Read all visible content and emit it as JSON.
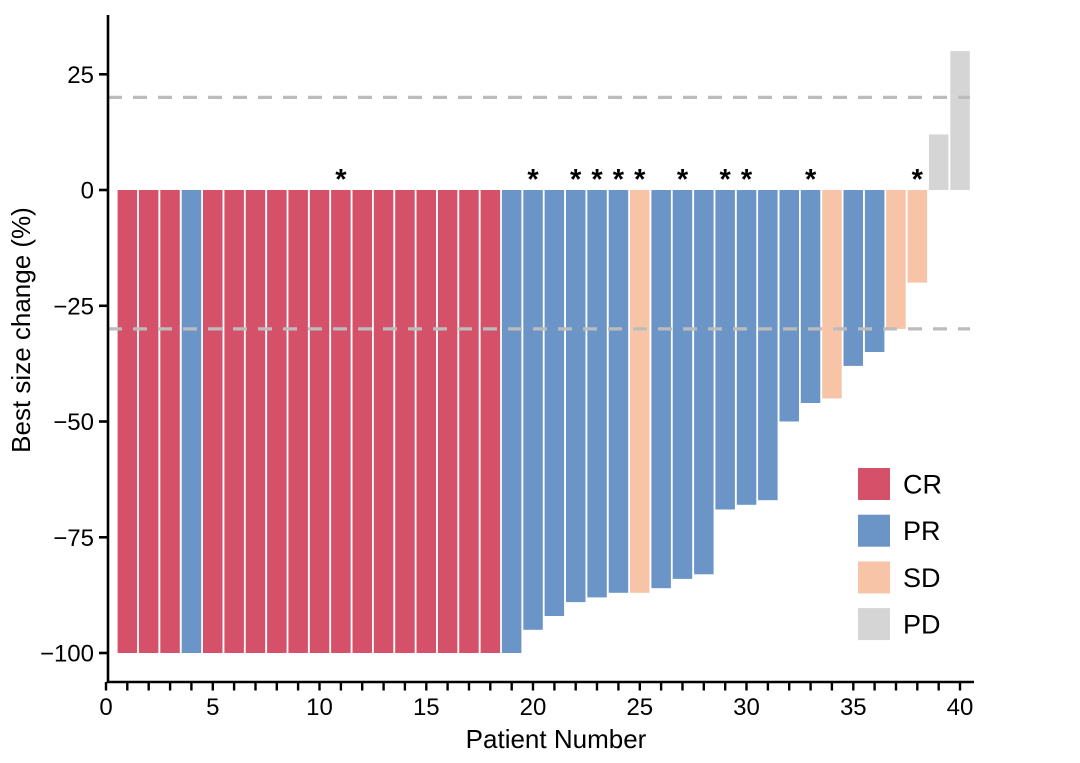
{
  "chart_data": {
    "type": "bar",
    "chart_kind": "waterfall",
    "title": "",
    "xlabel": "Patient Number",
    "ylabel": "Best size change (%)",
    "patients": [
      1,
      2,
      3,
      4,
      5,
      6,
      7,
      8,
      9,
      10,
      11,
      12,
      13,
      14,
      15,
      16,
      17,
      18,
      19,
      20,
      21,
      22,
      23,
      24,
      25,
      26,
      27,
      28,
      29,
      30,
      31,
      32,
      33,
      34,
      35,
      36,
      37,
      38,
      39,
      40
    ],
    "values": [
      -100,
      -100,
      -100,
      -100,
      -100,
      -100,
      -100,
      -100,
      -100,
      -100,
      -100,
      -100,
      -100,
      -100,
      -100,
      -100,
      -100,
      -100,
      -100,
      -95,
      -92,
      -89,
      -88,
      -87,
      -87,
      -86,
      -84,
      -83,
      -69,
      -68,
      -67,
      -50,
      -46,
      -45,
      -38,
      -35,
      -30,
      -20,
      12,
      30
    ],
    "response": [
      "CR",
      "CR",
      "CR",
      "PR",
      "CR",
      "CR",
      "CR",
      "CR",
      "CR",
      "CR",
      "CR",
      "CR",
      "CR",
      "CR",
      "CR",
      "CR",
      "CR",
      "CR",
      "PR",
      "PR",
      "PR",
      "PR",
      "PR",
      "PR",
      "SD",
      "PR",
      "PR",
      "PR",
      "PR",
      "PR",
      "PR",
      "PR",
      "PR",
      "SD",
      "PR",
      "PR",
      "SD",
      "SD",
      "PD",
      "PD"
    ],
    "starred_patients": [
      11,
      20,
      22,
      23,
      24,
      25,
      27,
      29,
      30,
      33,
      38
    ],
    "star_symbol": "*",
    "colors": {
      "CR": "#d5516a",
      "PR": "#6b95c7",
      "SD": "#f7c4a7",
      "PD": "#d5d5d5"
    },
    "threshold_lines": [
      {
        "value": 20,
        "style": "dashed",
        "color": "#bcbcbc"
      },
      {
        "value": -30,
        "style": "dashed",
        "color": "#bcbcbc"
      }
    ],
    "grid": false,
    "xticks_labeled": [
      0,
      5,
      10,
      15,
      20,
      25,
      30,
      35,
      40
    ],
    "xtick_minor_every": 1,
    "xlim": [
      0,
      40.6
    ],
    "ylim": [
      -106,
      38
    ],
    "yticks": [
      {
        "value": 25,
        "label": "25"
      },
      {
        "value": 0,
        "label": "0"
      },
      {
        "value": -25,
        "label": "−25"
      },
      {
        "value": -50,
        "label": "−50"
      },
      {
        "value": -75,
        "label": "−75"
      },
      {
        "value": -100,
        "label": "−100"
      }
    ],
    "legend": {
      "position": "lower-right",
      "entries": [
        {
          "label": "CR",
          "color": "#d5516a"
        },
        {
          "label": "PR",
          "color": "#6b95c7"
        },
        {
          "label": "SD",
          "color": "#f7c4a7"
        },
        {
          "label": "PD",
          "color": "#d5d5d5"
        }
      ]
    }
  }
}
